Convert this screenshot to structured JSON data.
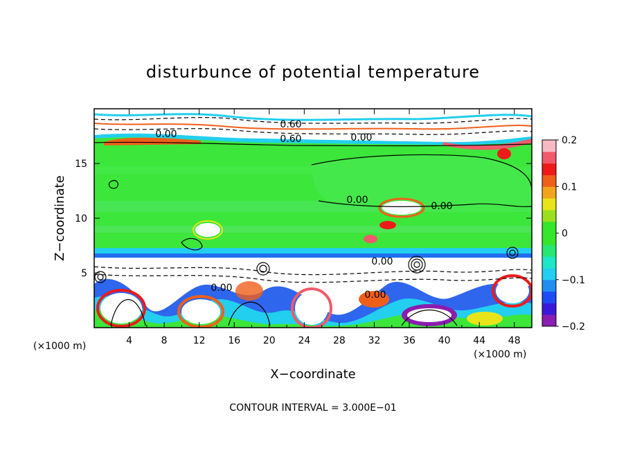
{
  "chart_data": {
    "type": "heatmap",
    "title": "disturbunce of potential temperature",
    "xlabel": "X−coordinate",
    "ylabel": "Z−coordinate",
    "x_unit": "(×1000 m)",
    "z_unit": "(×1000 m)",
    "xlim": [
      0,
      50
    ],
    "ylim": [
      0,
      20
    ],
    "x_ticks": [
      "4",
      "8",
      "12",
      "16",
      "20",
      "24",
      "28",
      "32",
      "36",
      "40",
      "44",
      "48"
    ],
    "y_ticks": [
      "5",
      "10",
      "15"
    ],
    "colorbar": {
      "range": [
        -0.2,
        0.2
      ],
      "ticks": [
        "0.2",
        "0.1",
        "0",
        "−0.1",
        "−0.2"
      ],
      "colors": [
        "#8b1db0",
        "#3a1ad8",
        "#1d4bf4",
        "#1f8ef0",
        "#22cfee",
        "#1de7c4",
        "#27e672",
        "#35e62a",
        "#34e62c",
        "#9be020",
        "#e7e51a",
        "#f2a41c",
        "#f05f1a",
        "#ee1a1a",
        "#f05a6b",
        "#f7b9c2"
      ]
    },
    "contour_labels": [
      "0.60",
      "0.60",
      "0.00",
      "0.00",
      "0.00",
      "0.00",
      "0.00",
      "0.00",
      "0.00"
    ],
    "contour_interval_text": "CONTOUR INTERVAL = 3.000E−01",
    "dominant_value_band_z": [
      6.5,
      17
    ],
    "dominant_value": 0.0
  }
}
